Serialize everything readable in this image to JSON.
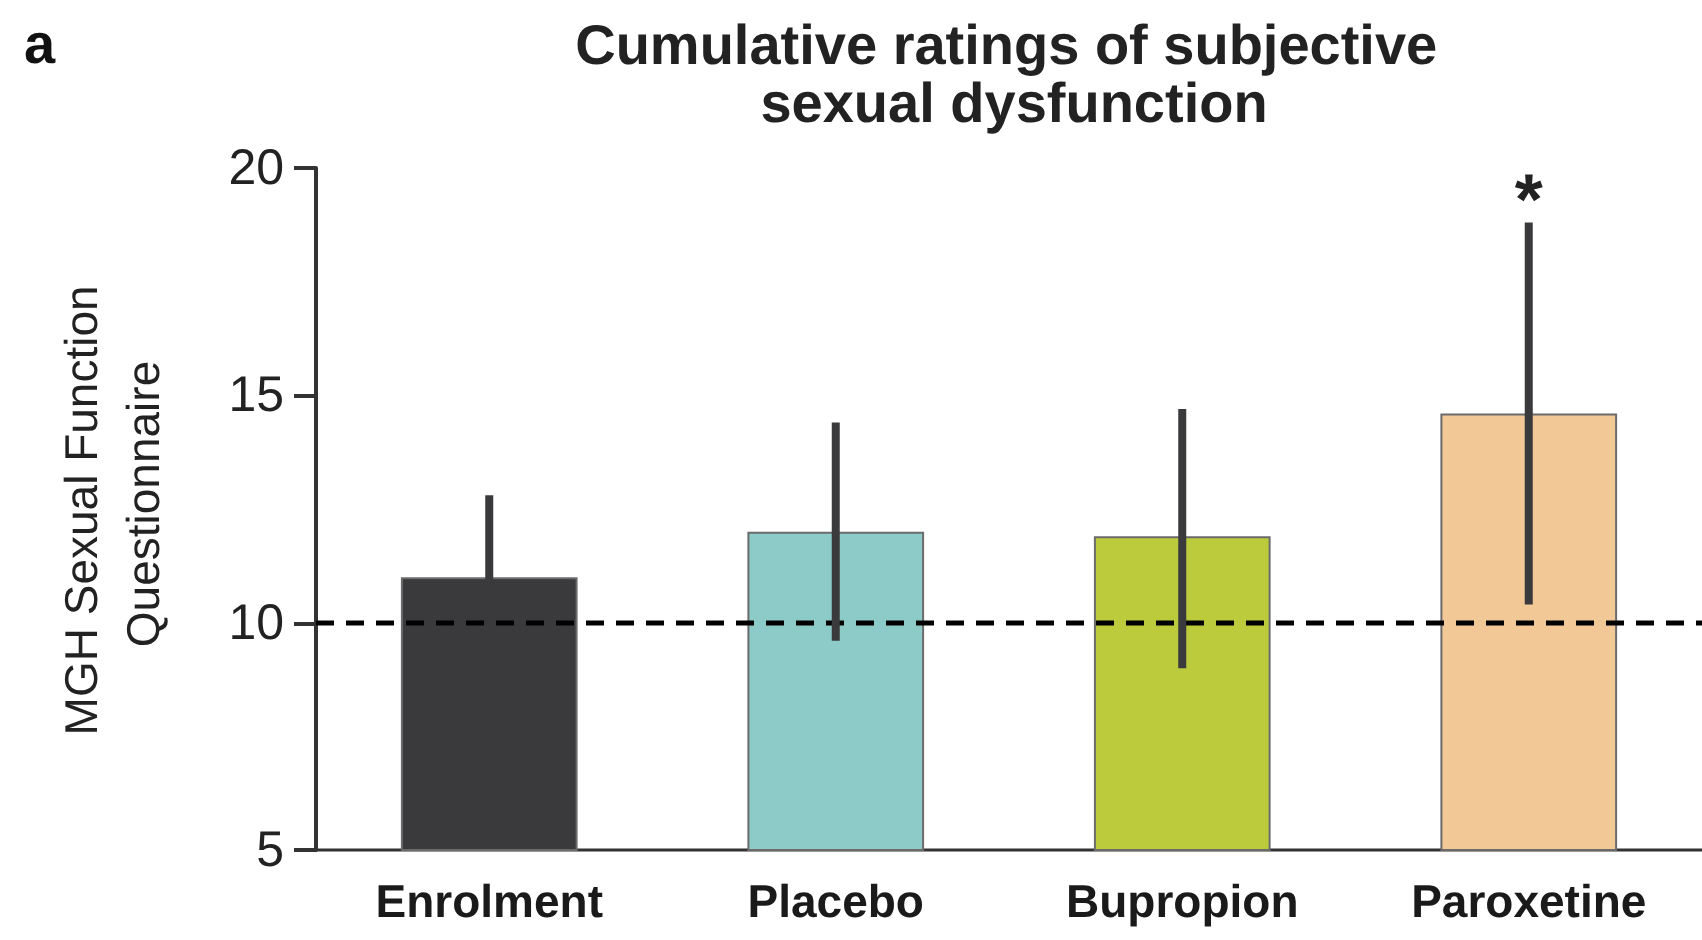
{
  "chart_data": {
    "type": "bar",
    "title": "Cumulative ratings of subjective sexual dysfunction",
    "ylabel": "MGH Sexual Function Questionnaire",
    "categories": [
      "Enrolment",
      "Placebo",
      "Bupropion",
      "Paroxetine"
    ],
    "values": [
      11.0,
      12.0,
      11.9,
      14.6
    ],
    "colors": [
      "#3a3a3c",
      "#8ccbc8",
      "#bccb3c",
      "#f2c896"
    ],
    "errors": [
      1.8,
      2.4,
      [
        9.0,
        14.7
      ],
      [
        10.4,
        18.8
      ]
    ],
    "ylim": [
      5,
      20
    ],
    "yticks": [
      5,
      10,
      15,
      20
    ],
    "ref_lines": [
      {
        "axis": "y",
        "value": 10,
        "color": "#000000",
        "line_style": "dashed"
      }
    ],
    "annotations": [
      "a",
      "*"
    ]
  }
}
